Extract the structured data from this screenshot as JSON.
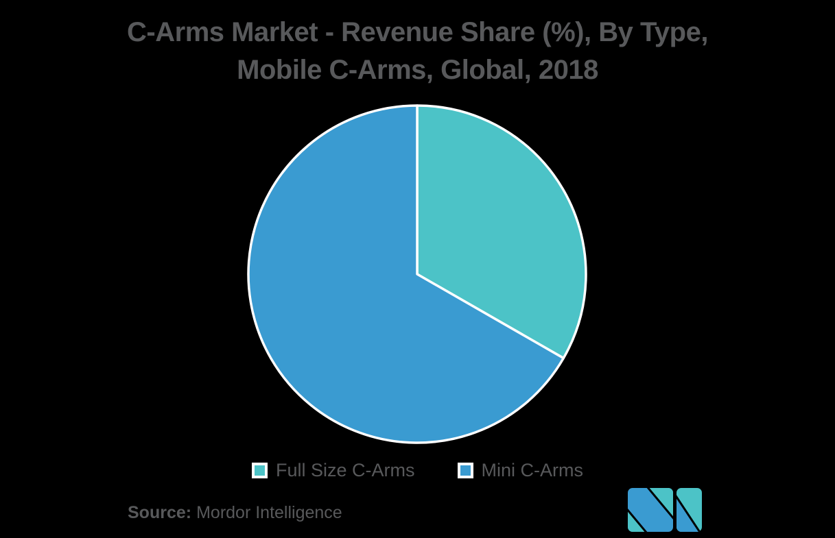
{
  "title": {
    "line1": "C-Arms Market - Revenue Share (%), By Type,",
    "line2": "Mobile C-Arms, Global, 2018"
  },
  "chart_data": {
    "type": "pie",
    "title": "C-Arms Market - Revenue Share (%), By Type, Mobile C-Arms, Global, 2018",
    "categories": [
      "Full Size C-Arms",
      "Mini C-Arms"
    ],
    "values": [
      33.3,
      66.7
    ],
    "unit": "%",
    "colors": [
      "#4CC3C7",
      "#3A9BD1"
    ],
    "start_angle_deg": 0,
    "direction": "clockwise",
    "slice_divider_color": "#FFFFFF",
    "legend_position": "bottom"
  },
  "legend": {
    "items": [
      {
        "label": "Full Size C-Arms",
        "color": "#4CC3C7"
      },
      {
        "label": "Mini C-Arms",
        "color": "#3A9BD1"
      }
    ]
  },
  "source": {
    "label": "Source:",
    "text": "Mordor Intelligence"
  },
  "logo": {
    "name": "mordor-intelligence-logo",
    "colors": {
      "blue": "#3A9BD1",
      "teal": "#4CC3C7"
    }
  },
  "colors": {
    "background": "#000000",
    "text": "#58595B",
    "pie_stroke": "#FFFFFF"
  }
}
